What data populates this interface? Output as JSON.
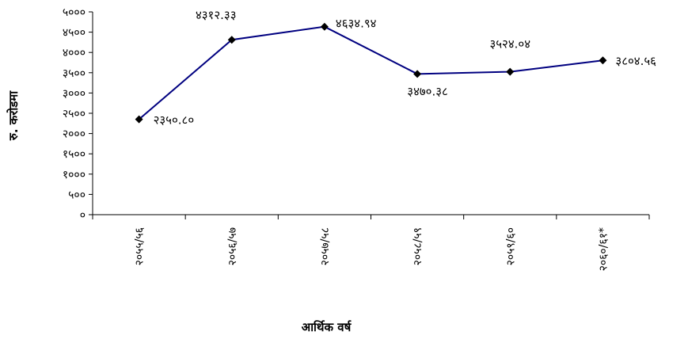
{
  "chart_data": {
    "type": "line",
    "title": "",
    "xlabel": "आर्थिक वर्ष",
    "ylabel": "रु. करोडमा",
    "categories": [
      "२०५५/५६",
      "२०५६/५७",
      "२०५७/५८",
      "२०५८/५९",
      "२०५९/६०",
      "२०६०/६१*"
    ],
    "series": [
      {
        "values": [
          2350.8,
          4312.33,
          4634.94,
          3470.38,
          3524.04,
          3804.56
        ],
        "labels": [
          "२३५०.८०",
          "४३१२.३३",
          "४६३४.९४",
          "३४७०.३८",
          "३५२४.०४",
          "३८०४.५६"
        ],
        "color": "#000080",
        "marker": "diamond"
      }
    ],
    "ylim": [
      0,
      5000
    ],
    "yticks": [
      0,
      500,
      1000,
      1500,
      2000,
      2500,
      3000,
      3500,
      4000,
      4500,
      5000
    ],
    "ytick_labels": [
      "०",
      "५००",
      "१०००",
      "१५००",
      "२०००",
      "२५००",
      "३०००",
      "३५००",
      "४०००",
      "४५००",
      "५०००"
    ],
    "grid": false,
    "legend": "none"
  }
}
